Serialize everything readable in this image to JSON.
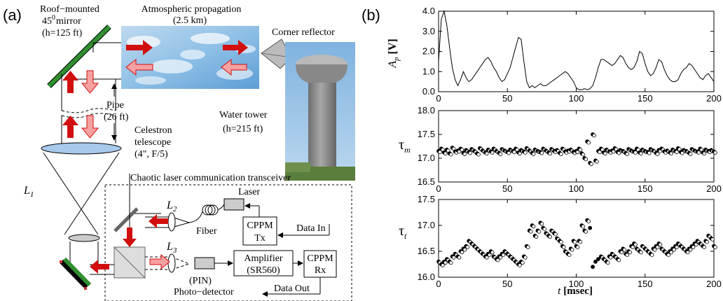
{
  "panel_a": {
    "label": "(a)",
    "mirror_label": [
      "Roof−mounted",
      "45",
      "0",
      "mirror",
      "(h=125 ft)"
    ],
    "sky_label": [
      "Atmospheric propagation",
      "(2.5 km)"
    ],
    "corner_reflector": "Corner reflector",
    "water_tower": [
      "Water tower",
      "(h=215 ft)"
    ],
    "pipe": [
      "Pipe",
      "(26 ft)"
    ],
    "telescope": [
      "Celestron",
      "telescope",
      "(4\", F/5)"
    ],
    "lens_L1": "L",
    "lens_L1_sub": "1",
    "lens_L2": "L",
    "lens_L2_sub": "2",
    "lens_L3": "L",
    "lens_L3_sub": "3",
    "transceiver": "Chaotic laser communication transceiver",
    "laser": "Laser",
    "fiber": "Fiber",
    "cppm_tx": [
      "CPPM",
      "Tx"
    ],
    "data_in": "Data In",
    "amplifier": [
      "Amplifier",
      "(SR560)"
    ],
    "cppm_rx": [
      "CPPM",
      "Rx"
    ],
    "photodetector": [
      "(PIN)",
      "Photo−detector"
    ],
    "data_out": "Data Out"
  },
  "panel_b": {
    "label": "(b)",
    "xlabel_italic": "t",
    "xlabel_unit": "[msec]"
  },
  "chart_data": [
    {
      "type": "line",
      "ylabel": "A",
      "ylabel_sub": "p",
      "ylabel_unit": "[V]",
      "xlim": [
        0,
        200
      ],
      "ylim": [
        0,
        4
      ],
      "xticks": [
        0,
        50,
        100,
        150,
        200
      ],
      "yticks": [
        "0.0",
        "1.0",
        "2.0",
        "3.0",
        "4.0"
      ],
      "x": [
        0,
        2,
        4,
        6,
        8,
        10,
        12,
        14,
        16,
        18,
        20,
        22,
        24,
        26,
        28,
        30,
        32,
        34,
        36,
        38,
        40,
        42,
        44,
        46,
        48,
        50,
        52,
        54,
        56,
        58,
        60,
        62,
        64,
        66,
        68,
        70,
        72,
        74,
        76,
        78,
        80,
        82,
        84,
        86,
        88,
        90,
        92,
        94,
        96,
        98,
        100,
        102,
        104,
        106,
        108,
        110,
        112,
        114,
        116,
        118,
        120,
        122,
        124,
        126,
        128,
        130,
        132,
        134,
        136,
        138,
        140,
        142,
        144,
        146,
        148,
        150,
        152,
        154,
        156,
        158,
        160,
        162,
        164,
        166,
        168,
        170,
        172,
        174,
        176,
        178,
        180,
        182,
        184,
        186,
        188,
        190,
        192,
        194,
        196,
        198,
        200
      ],
      "y": [
        1.5,
        3.6,
        4.0,
        3.3,
        2.2,
        1.2,
        0.6,
        0.3,
        0.6,
        1.0,
        0.7,
        0.5,
        0.6,
        0.8,
        1.0,
        1.2,
        1.4,
        1.6,
        1.7,
        1.5,
        1.2,
        1.0,
        0.7,
        0.5,
        0.6,
        0.9,
        1.2,
        1.7,
        2.2,
        2.7,
        2.6,
        1.5,
        0.5,
        0.2,
        0.3,
        0.2,
        0.3,
        0.4,
        0.3,
        0.3,
        0.4,
        0.5,
        0.6,
        0.7,
        0.8,
        0.9,
        1.0,
        0.9,
        0.7,
        0.5,
        0.2,
        0.1,
        0.1,
        0.15,
        0.1,
        0.15,
        0.3,
        0.7,
        1.2,
        1.6,
        1.6,
        1.5,
        1.4,
        1.3,
        1.4,
        1.6,
        1.8,
        1.7,
        1.4,
        1.2,
        1.1,
        1.2,
        1.5,
        2.0,
        1.9,
        1.4,
        1.0,
        0.8,
        0.9,
        1.2,
        1.6,
        1.5,
        1.1,
        0.8,
        0.6,
        0.5,
        0.5,
        0.6,
        0.9,
        1.1,
        1.2,
        1.4,
        1.3,
        1.1,
        0.9,
        0.7,
        0.6,
        0.8,
        0.9,
        0.7,
        0.5
      ]
    },
    {
      "type": "scatter",
      "ylabel": "τ",
      "ylabel_sub": "m",
      "xlim": [
        0,
        200
      ],
      "ylim": [
        16.5,
        18.0
      ],
      "xticks": [
        0,
        50,
        100,
        150,
        200
      ],
      "yticks": [
        "16.5",
        "17.0",
        "17.5",
        "18.0"
      ],
      "x": [
        0,
        2,
        4,
        6,
        8,
        10,
        12,
        14,
        16,
        18,
        20,
        22,
        24,
        26,
        28,
        30,
        32,
        34,
        36,
        38,
        40,
        42,
        44,
        46,
        48,
        50,
        52,
        54,
        56,
        58,
        60,
        62,
        64,
        66,
        68,
        70,
        72,
        74,
        76,
        78,
        80,
        82,
        84,
        86,
        88,
        90,
        92,
        94,
        96,
        98,
        100,
        102,
        104,
        106,
        108,
        110,
        112,
        114,
        116,
        118,
        120,
        122,
        124,
        126,
        128,
        130,
        132,
        134,
        136,
        138,
        140,
        142,
        144,
        146,
        148,
        150,
        152,
        154,
        156,
        158,
        160,
        162,
        164,
        166,
        168,
        170,
        172,
        174,
        176,
        178,
        180,
        182,
        184,
        186,
        188,
        190,
        192,
        194,
        196,
        198,
        200
      ],
      "y": [
        17.15,
        17.2,
        17.12,
        17.18,
        17.1,
        17.22,
        17.14,
        17.16,
        17.2,
        17.11,
        17.17,
        17.13,
        17.19,
        17.15,
        17.1,
        17.21,
        17.16,
        17.12,
        17.18,
        17.14,
        17.2,
        17.15,
        17.11,
        17.19,
        17.16,
        17.13,
        17.18,
        17.15,
        17.2,
        17.12,
        17.17,
        17.14,
        17.21,
        17.16,
        17.11,
        17.18,
        17.15,
        17.13,
        17.2,
        17.16,
        17.12,
        17.19,
        17.15,
        17.17,
        17.11,
        17.2,
        17.14,
        17.16,
        17.18,
        17.13,
        17.15,
        17.2,
        17.1,
        17.0,
        17.35,
        16.9,
        17.5,
        16.95,
        17.15,
        17.2,
        17.12,
        17.18,
        17.14,
        17.16,
        17.21,
        17.13,
        17.17,
        17.15,
        17.11,
        17.19,
        17.16,
        17.14,
        17.2,
        17.12,
        17.18,
        17.15,
        17.13,
        17.19,
        17.16,
        17.11,
        17.17,
        17.2,
        17.14,
        17.16,
        17.12,
        17.18,
        17.15,
        17.21,
        17.13,
        17.17,
        17.15,
        17.11,
        17.19,
        17.16,
        17.14,
        17.2,
        17.12,
        17.18,
        17.15,
        17.17,
        17.14
      ]
    },
    {
      "type": "scatter",
      "ylabel": "τ",
      "ylabel_sub": "t",
      "xlim": [
        0,
        200
      ],
      "ylim": [
        16.0,
        17.5
      ],
      "xticks": [
        0,
        50,
        100,
        150,
        200
      ],
      "yticks": [
        "16.0",
        "16.5",
        "17.0",
        "17.5"
      ],
      "x": [
        0,
        2,
        4,
        6,
        8,
        10,
        12,
        14,
        16,
        18,
        20,
        22,
        24,
        26,
        28,
        30,
        32,
        34,
        36,
        38,
        40,
        42,
        44,
        46,
        48,
        50,
        52,
        54,
        56,
        58,
        60,
        62,
        64,
        66,
        68,
        70,
        72,
        74,
        76,
        78,
        80,
        82,
        84,
        86,
        88,
        90,
        92,
        94,
        96,
        98,
        100,
        102,
        104,
        106,
        108,
        110,
        112,
        114,
        116,
        118,
        120,
        122,
        124,
        126,
        128,
        130,
        132,
        134,
        136,
        138,
        140,
        142,
        144,
        146,
        148,
        150,
        152,
        154,
        156,
        158,
        160,
        162,
        164,
        166,
        168,
        170,
        172,
        174,
        176,
        178,
        180,
        182,
        184,
        186,
        188,
        190,
        192,
        194,
        196,
        198,
        200
      ],
      "y": [
        16.3,
        16.25,
        16.3,
        16.35,
        16.3,
        16.4,
        16.45,
        16.4,
        16.5,
        16.55,
        16.6,
        16.7,
        16.65,
        16.6,
        16.55,
        16.5,
        16.45,
        16.4,
        16.45,
        16.5,
        16.4,
        16.35,
        16.4,
        16.45,
        16.5,
        16.45,
        16.4,
        16.35,
        16.3,
        16.25,
        16.3,
        16.4,
        16.6,
        16.9,
        17.0,
        16.8,
        16.9,
        17.05,
        16.95,
        16.85,
        16.8,
        16.9,
        16.85,
        16.75,
        16.7,
        16.6,
        16.5,
        16.45,
        16.55,
        16.7,
        16.6,
        16.7,
        17.0,
        16.9,
        17.1,
        16.95,
        16.2,
        16.3,
        16.35,
        16.4,
        16.35,
        16.3,
        16.4,
        16.45,
        16.4,
        16.35,
        16.5,
        16.55,
        16.45,
        16.5,
        16.6,
        16.65,
        16.55,
        16.5,
        16.6,
        16.55,
        16.5,
        16.45,
        16.55,
        16.6,
        16.65,
        16.55,
        16.5,
        16.45,
        16.5,
        16.55,
        16.6,
        16.65,
        16.6,
        16.55,
        16.5,
        16.55,
        16.6,
        16.65,
        16.7,
        16.65,
        16.6,
        16.7,
        16.8,
        16.75,
        16.6
      ]
    }
  ]
}
